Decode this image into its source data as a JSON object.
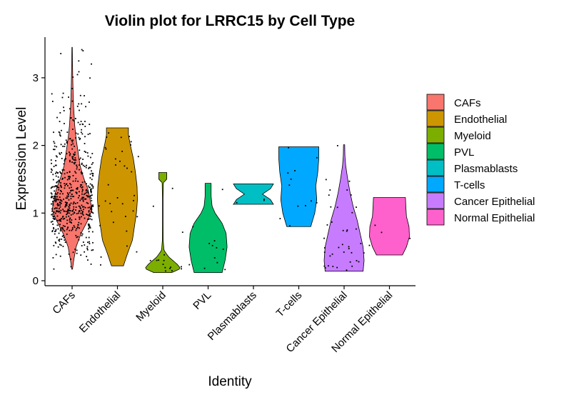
{
  "chart_data": {
    "type": "violin",
    "title": "Violin plot for LRRC15 by Cell Type",
    "xlabel": "Identity",
    "ylabel": "Expression Level",
    "ylim": [
      0,
      3.6
    ],
    "yticks": [
      0,
      1,
      2,
      3
    ],
    "categories": [
      "CAFs",
      "Endothelial",
      "Myeloid",
      "PVL",
      "Plasmablasts",
      "T-cells",
      "Cancer Epithelial",
      "Normal Epithelial"
    ],
    "legend_position": "right",
    "series": [
      {
        "name": "CAFs",
        "color": "#F8766D",
        "range": [
          0.17,
          3.45
        ],
        "density": [
          [
            0.17,
            0.02
          ],
          [
            0.3,
            0.08
          ],
          [
            0.5,
            0.2
          ],
          [
            0.7,
            0.45
          ],
          [
            0.9,
            0.8
          ],
          [
            1.05,
            1.0
          ],
          [
            1.2,
            0.9
          ],
          [
            1.35,
            0.8
          ],
          [
            1.5,
            0.6
          ],
          [
            1.7,
            0.4
          ],
          [
            1.9,
            0.3
          ],
          [
            2.1,
            0.2
          ],
          [
            2.3,
            0.13
          ],
          [
            2.6,
            0.07
          ],
          [
            2.9,
            0.04
          ],
          [
            3.2,
            0.02
          ],
          [
            3.45,
            0.01
          ]
        ],
        "points_n": 620
      },
      {
        "name": "Endothelial",
        "color": "#CD9600",
        "range": [
          0.22,
          2.26
        ],
        "density": [
          [
            0.22,
            0.3
          ],
          [
            0.4,
            0.5
          ],
          [
            0.6,
            0.75
          ],
          [
            0.8,
            0.85
          ],
          [
            1.0,
            0.95
          ],
          [
            1.2,
            1.0
          ],
          [
            1.4,
            0.98
          ],
          [
            1.6,
            0.9
          ],
          [
            1.8,
            0.8
          ],
          [
            2.0,
            0.65
          ],
          [
            2.15,
            0.55
          ],
          [
            2.26,
            0.55
          ]
        ],
        "points_n": 35
      },
      {
        "name": "Myeloid",
        "color": "#7CAE00",
        "range": [
          0.12,
          1.6
        ],
        "density": [
          [
            0.12,
            0.45
          ],
          [
            0.18,
            0.9
          ],
          [
            0.25,
            0.7
          ],
          [
            0.35,
            0.3
          ],
          [
            0.45,
            0.06
          ],
          [
            0.6,
            0.02
          ],
          [
            0.9,
            0.015
          ],
          [
            1.2,
            0.015
          ],
          [
            1.45,
            0.03
          ],
          [
            1.5,
            0.2
          ],
          [
            1.6,
            0.2
          ]
        ],
        "points_n": 16
      },
      {
        "name": "PVL",
        "color": "#00BE67",
        "range": [
          0.12,
          1.44
        ],
        "density": [
          [
            0.12,
            0.7
          ],
          [
            0.3,
            0.85
          ],
          [
            0.5,
            0.95
          ],
          [
            0.7,
            0.9
          ],
          [
            0.85,
            0.7
          ],
          [
            1.0,
            0.35
          ],
          [
            1.1,
            0.2
          ],
          [
            1.25,
            0.15
          ],
          [
            1.44,
            0.15
          ]
        ],
        "points_n": 12
      },
      {
        "name": "Plasmablasts",
        "color": "#00BFC4",
        "range": [
          1.13,
          1.43
        ],
        "density": [
          [
            1.13,
            1.0
          ],
          [
            1.2,
            0.85
          ],
          [
            1.28,
            0.45
          ],
          [
            1.36,
            0.85
          ],
          [
            1.43,
            1.0
          ]
        ],
        "points_n": 3
      },
      {
        "name": "T-cells",
        "color": "#00A9FF",
        "range": [
          0.8,
          1.98
        ],
        "density": [
          [
            0.8,
            0.6
          ],
          [
            0.9,
            0.7
          ],
          [
            1.0,
            0.8
          ],
          [
            1.2,
            0.9
          ],
          [
            1.4,
            0.85
          ],
          [
            1.6,
            0.95
          ],
          [
            1.8,
            1.0
          ],
          [
            1.98,
            1.0
          ]
        ],
        "points_n": 12
      },
      {
        "name": "Cancer Epithelial",
        "color": "#C77CFF",
        "range": [
          0.14,
          2.01
        ],
        "density": [
          [
            0.14,
            0.95
          ],
          [
            0.3,
            1.0
          ],
          [
            0.5,
            0.95
          ],
          [
            0.7,
            0.8
          ],
          [
            0.9,
            0.65
          ],
          [
            1.1,
            0.45
          ],
          [
            1.3,
            0.3
          ],
          [
            1.5,
            0.18
          ],
          [
            1.7,
            0.08
          ],
          [
            1.85,
            0.04
          ],
          [
            2.01,
            0.03
          ]
        ],
        "points_n": 40
      },
      {
        "name": "Normal Epithelial",
        "color": "#FF61CC",
        "range": [
          0.38,
          1.23
        ],
        "density": [
          [
            0.38,
            0.65
          ],
          [
            0.5,
            0.85
          ],
          [
            0.65,
            1.0
          ],
          [
            0.8,
            0.98
          ],
          [
            0.95,
            0.85
          ],
          [
            1.1,
            0.82
          ],
          [
            1.23,
            0.8
          ]
        ],
        "points_n": 4
      }
    ]
  }
}
